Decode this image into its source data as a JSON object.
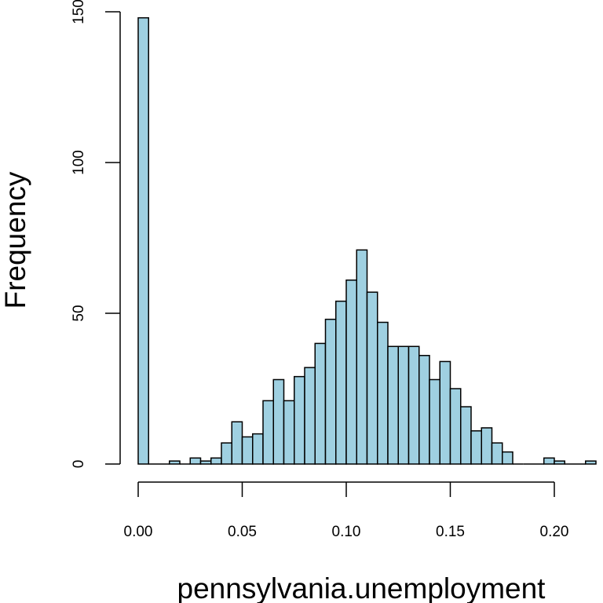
{
  "chart_data": {
    "type": "bar",
    "xlabel": "pennsylvania.unemployment",
    "ylabel": "Frequency",
    "bar_color": "#9fd0e1",
    "bin_start": 0.0,
    "bin_width": 0.005,
    "values": [
      148,
      0,
      0,
      1,
      0,
      2,
      1,
      2,
      7,
      14,
      9,
      10,
      21,
      28,
      21,
      29,
      32,
      40,
      48,
      54,
      61,
      71,
      57,
      47,
      39,
      39,
      39,
      36,
      28,
      34,
      25,
      19,
      11,
      12,
      7,
      4,
      0,
      0,
      0,
      2,
      1,
      0,
      0,
      1
    ],
    "xlim": [
      0.0,
      0.2
    ],
    "xticks": [
      0.0,
      0.05,
      0.1,
      0.15,
      0.2
    ],
    "xtick_labels": [
      "0.00",
      "0.05",
      "0.10",
      "0.15",
      "0.20"
    ],
    "ylim": [
      0,
      150
    ],
    "yticks": [
      0,
      50,
      100,
      150
    ],
    "ytick_labels": [
      "0",
      "50",
      "100",
      "150"
    ]
  }
}
